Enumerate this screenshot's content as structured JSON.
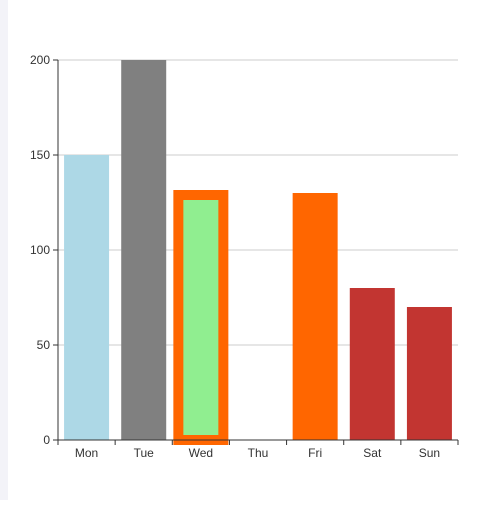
{
  "chart_data": {
    "type": "bar",
    "title": "",
    "xlabel": "",
    "ylabel": "",
    "categories": [
      "Mon",
      "Tue",
      "Wed",
      "Thu",
      "Fri",
      "Sat",
      "Sun"
    ],
    "values": [
      150,
      200,
      130,
      0,
      130,
      80,
      70
    ],
    "ylim": [
      0,
      200
    ],
    "yticks": [
      0,
      50,
      100,
      150,
      200
    ],
    "grid": true,
    "legend": "none",
    "bar_colors": [
      "#add8e6",
      "#808080",
      "#90ee90",
      "#ffffff",
      "#ff6600",
      "#c23531",
      "#c23531"
    ],
    "bar_styles": [
      {
        "fill": "#add8e6"
      },
      {
        "fill": "#808080"
      },
      {
        "fill": "#90ee90",
        "stroke": "#ff6600",
        "emphasis": "thick-border"
      },
      {
        "fill": "none"
      },
      {
        "fill": "#ff6600"
      },
      {
        "fill": "#c23531"
      },
      {
        "fill": "#c23531"
      }
    ],
    "colors": {
      "axis": "#333333",
      "grid": "#cccccc",
      "text": "#333333"
    }
  }
}
